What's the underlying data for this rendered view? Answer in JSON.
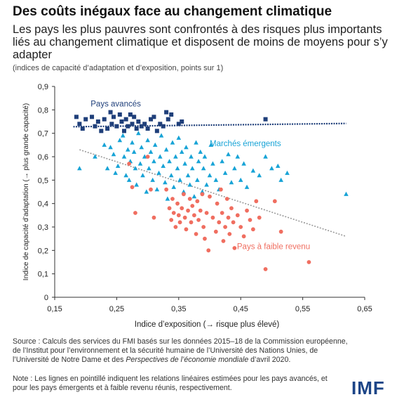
{
  "header": {
    "title": "Des coûts inégaux face au changement climatique",
    "subtitle": "Les pays les plus pauvres sont confrontés à des risques plus importants liés au changement climatique et disposent de moins de moyens pour s’y adapter",
    "unit_note": "(indices de capacité d’adaptation et d’exposition, points sur 1)"
  },
  "footer": {
    "source": "Source : Calculs des services du FMI basés sur les données 2015–18 de la Commission européenne, de l’Institut pour l’environnement et la sécurité humaine de l’Université des Nations Unies, de l’Université de Notre Dame et des Perspectives de l’économie mondiale d’avril 2020.",
    "note": "Note : Les lignes en pointillé indiquent les relations linéaires estimées pour les pays avancés, et pour les pays émergents et à faible revenu réunis, respectivement.",
    "logo": "IMF"
  },
  "chart_data": {
    "type": "scatter",
    "xlabel": "Indice d’exposition (→ risque plus élevé)",
    "ylabel": "Indice de capacité d’adaptation (→ plus grande capacité)",
    "xlim": [
      0.15,
      0.65
    ],
    "ylim": [
      0,
      0.9
    ],
    "xticks": [
      "0,15",
      "0,25",
      "0,35",
      "0,45",
      "0,55",
      "0,65"
    ],
    "yticks": [
      "0",
      "0,1",
      "0,2",
      "0,3",
      "0,4",
      "0,5",
      "0,6",
      "0,7",
      "0,8",
      "0,9"
    ],
    "grid": false,
    "series": [
      {
        "name": "Pays avancés",
        "marker": "square",
        "color": "#1f3f7a",
        "points": [
          [
            0.185,
            0.77
          ],
          [
            0.19,
            0.74
          ],
          [
            0.195,
            0.72
          ],
          [
            0.2,
            0.76
          ],
          [
            0.21,
            0.77
          ],
          [
            0.215,
            0.73
          ],
          [
            0.22,
            0.75
          ],
          [
            0.225,
            0.71
          ],
          [
            0.23,
            0.76
          ],
          [
            0.235,
            0.72
          ],
          [
            0.24,
            0.79
          ],
          [
            0.242,
            0.74
          ],
          [
            0.245,
            0.77
          ],
          [
            0.25,
            0.73
          ],
          [
            0.255,
            0.78
          ],
          [
            0.258,
            0.75
          ],
          [
            0.262,
            0.71
          ],
          [
            0.265,
            0.76
          ],
          [
            0.268,
            0.73
          ],
          [
            0.272,
            0.78
          ],
          [
            0.275,
            0.74
          ],
          [
            0.278,
            0.77
          ],
          [
            0.282,
            0.72
          ],
          [
            0.285,
            0.75
          ],
          [
            0.29,
            0.73
          ],
          [
            0.295,
            0.74
          ],
          [
            0.3,
            0.72
          ],
          [
            0.305,
            0.76
          ],
          [
            0.31,
            0.77
          ],
          [
            0.315,
            0.71
          ],
          [
            0.32,
            0.74
          ],
          [
            0.325,
            0.73
          ],
          [
            0.33,
            0.79
          ],
          [
            0.333,
            0.76
          ],
          [
            0.338,
            0.78
          ],
          [
            0.35,
            0.74
          ],
          [
            0.355,
            0.75
          ],
          [
            0.49,
            0.76
          ]
        ]
      },
      {
        "name": "Marchés émergents",
        "marker": "triangle",
        "color": "#17a3d6",
        "points": [
          [
            0.19,
            0.55
          ],
          [
            0.215,
            0.6
          ],
          [
            0.23,
            0.65
          ],
          [
            0.235,
            0.55
          ],
          [
            0.24,
            0.64
          ],
          [
            0.245,
            0.61
          ],
          [
            0.248,
            0.53
          ],
          [
            0.252,
            0.56
          ],
          [
            0.255,
            0.67
          ],
          [
            0.26,
            0.69
          ],
          [
            0.262,
            0.6
          ],
          [
            0.265,
            0.52
          ],
          [
            0.268,
            0.63
          ],
          [
            0.27,
            0.5
          ],
          [
            0.272,
            0.58
          ],
          [
            0.275,
            0.66
          ],
          [
            0.278,
            0.62
          ],
          [
            0.28,
            0.55
          ],
          [
            0.282,
            0.48
          ],
          [
            0.285,
            0.7
          ],
          [
            0.288,
            0.57
          ],
          [
            0.29,
            0.64
          ],
          [
            0.292,
            0.52
          ],
          [
            0.295,
            0.6
          ],
          [
            0.298,
            0.45
          ],
          [
            0.3,
            0.67
          ],
          [
            0.302,
            0.55
          ],
          [
            0.305,
            0.62
          ],
          [
            0.308,
            0.5
          ],
          [
            0.31,
            0.58
          ],
          [
            0.312,
            0.65
          ],
          [
            0.315,
            0.46
          ],
          [
            0.318,
            0.53
          ],
          [
            0.32,
            0.6
          ],
          [
            0.322,
            0.69
          ],
          [
            0.325,
            0.56
          ],
          [
            0.328,
            0.49
          ],
          [
            0.33,
            0.63
          ],
          [
            0.332,
            0.42
          ],
          [
            0.335,
            0.58
          ],
          [
            0.338,
            0.52
          ],
          [
            0.34,
            0.66
          ],
          [
            0.342,
            0.47
          ],
          [
            0.345,
            0.6
          ],
          [
            0.348,
            0.55
          ],
          [
            0.35,
            0.68
          ],
          [
            0.352,
            0.5
          ],
          [
            0.355,
            0.62
          ],
          [
            0.358,
            0.45
          ],
          [
            0.36,
            0.57
          ],
          [
            0.362,
            0.64
          ],
          [
            0.365,
            0.52
          ],
          [
            0.368,
            0.48
          ],
          [
            0.37,
            0.6
          ],
          [
            0.372,
            0.55
          ],
          [
            0.375,
            0.43
          ],
          [
            0.378,
            0.66
          ],
          [
            0.38,
            0.5
          ],
          [
            0.382,
            0.58
          ],
          [
            0.385,
            0.62
          ],
          [
            0.388,
            0.45
          ],
          [
            0.39,
            0.55
          ],
          [
            0.392,
            0.6
          ],
          [
            0.395,
            0.48
          ],
          [
            0.4,
            0.52
          ],
          [
            0.402,
            0.65
          ],
          [
            0.405,
            0.57
          ],
          [
            0.41,
            0.5
          ],
          [
            0.415,
            0.46
          ],
          [
            0.42,
            0.58
          ],
          [
            0.425,
            0.53
          ],
          [
            0.43,
            0.61
          ],
          [
            0.435,
            0.49
          ],
          [
            0.44,
            0.55
          ],
          [
            0.445,
            0.6
          ],
          [
            0.45,
            0.5
          ],
          [
            0.455,
            0.57
          ],
          [
            0.46,
            0.47
          ],
          [
            0.47,
            0.54
          ],
          [
            0.48,
            0.52
          ],
          [
            0.49,
            0.6
          ],
          [
            0.5,
            0.55
          ],
          [
            0.51,
            0.56
          ],
          [
            0.515,
            0.5
          ],
          [
            0.525,
            0.53
          ],
          [
            0.62,
            0.44
          ]
        ]
      },
      {
        "name": "Pays à faible revenu",
        "marker": "circle",
        "color": "#f06e60",
        "points": [
          [
            0.27,
            0.57
          ],
          [
            0.275,
            0.47
          ],
          [
            0.28,
            0.36
          ],
          [
            0.3,
            0.6
          ],
          [
            0.305,
            0.46
          ],
          [
            0.31,
            0.34
          ],
          [
            0.33,
            0.46
          ],
          [
            0.335,
            0.38
          ],
          [
            0.338,
            0.33
          ],
          [
            0.34,
            0.42
          ],
          [
            0.342,
            0.36
          ],
          [
            0.345,
            0.3
          ],
          [
            0.348,
            0.4
          ],
          [
            0.35,
            0.35
          ],
          [
            0.352,
            0.32
          ],
          [
            0.355,
            0.38
          ],
          [
            0.358,
            0.44
          ],
          [
            0.36,
            0.34
          ],
          [
            0.362,
            0.29
          ],
          [
            0.365,
            0.37
          ],
          [
            0.368,
            0.42
          ],
          [
            0.37,
            0.32
          ],
          [
            0.372,
            0.39
          ],
          [
            0.375,
            0.35
          ],
          [
            0.378,
            0.27
          ],
          [
            0.38,
            0.41
          ],
          [
            0.382,
            0.33
          ],
          [
            0.385,
            0.37
          ],
          [
            0.388,
            0.44
          ],
          [
            0.39,
            0.3
          ],
          [
            0.392,
            0.25
          ],
          [
            0.395,
            0.36
          ],
          [
            0.398,
            0.2
          ],
          [
            0.4,
            0.43
          ],
          [
            0.405,
            0.34
          ],
          [
            0.41,
            0.28
          ],
          [
            0.412,
            0.4
          ],
          [
            0.415,
            0.32
          ],
          [
            0.418,
            0.46
          ],
          [
            0.42,
            0.36
          ],
          [
            0.422,
            0.24
          ],
          [
            0.425,
            0.3
          ],
          [
            0.428,
            0.42
          ],
          [
            0.43,
            0.34
          ],
          [
            0.432,
            0.27
          ],
          [
            0.435,
            0.38
          ],
          [
            0.438,
            0.32
          ],
          [
            0.44,
            0.21
          ],
          [
            0.445,
            0.35
          ],
          [
            0.45,
            0.3
          ],
          [
            0.455,
            0.26
          ],
          [
            0.46,
            0.37
          ],
          [
            0.465,
            0.33
          ],
          [
            0.47,
            0.29
          ],
          [
            0.475,
            0.41
          ],
          [
            0.48,
            0.34
          ],
          [
            0.49,
            0.12
          ],
          [
            0.505,
            0.41
          ],
          [
            0.515,
            0.28
          ],
          [
            0.56,
            0.15
          ]
        ]
      }
    ],
    "trendlines": [
      {
        "name": "Pays avancés",
        "color": "#1f3f7a",
        "x": [
          0.18,
          0.62
        ],
        "y": [
          0.728,
          0.742
        ]
      },
      {
        "name": "Marchés émergents et pays à faible revenu",
        "color": "#999999",
        "x": [
          0.19,
          0.62
        ],
        "y": [
          0.63,
          0.26
        ]
      }
    ],
    "annotations": [
      {
        "text": "Pays avancés",
        "x": 0.208,
        "y": 0.815,
        "color": "#1f3f7a"
      },
      {
        "text": "Marchés émergents",
        "x": 0.4,
        "y": 0.645,
        "color": "#17a3d6"
      },
      {
        "text": "Pays à faible revenu",
        "x": 0.444,
        "y": 0.205,
        "color": "#f06e60"
      }
    ]
  }
}
